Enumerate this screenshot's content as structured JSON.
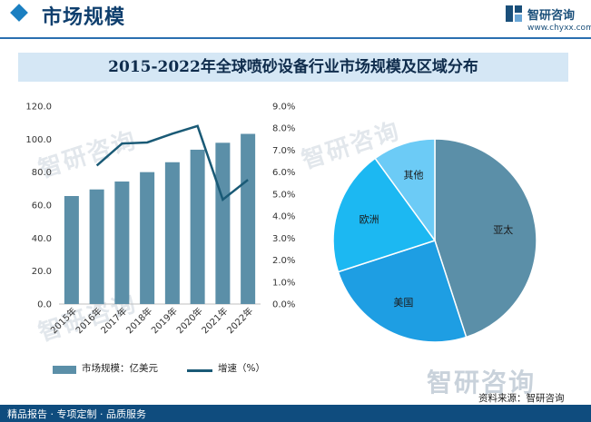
{
  "header": {
    "title": "市场规模"
  },
  "brand": {
    "name": "智研咨询",
    "url": "www.chyxx.com"
  },
  "chart_title": "2015-2022年全球喷砂设备行业市场规模及区域分布",
  "footer": {
    "tagline": "精品报告 · 专项定制 · 品质服务",
    "source": "资料来源：智研咨询"
  },
  "watermark": {
    "text": "智研咨询"
  },
  "legend": {
    "bar": "市场规模：亿美元",
    "line": "增速（%）"
  },
  "chart_data": [
    {
      "type": "bar",
      "categories": [
        "2015年",
        "2016年",
        "2017年",
        "2018年",
        "2019年",
        "2020年",
        "2021年",
        "2022年"
      ],
      "left_axis": {
        "ticks": [
          "0.0",
          "20.0",
          "40.0",
          "60.0",
          "80.0",
          "100.0",
          "120.0"
        ],
        "ylim": [
          0,
          120
        ]
      },
      "right_axis": {
        "ticks": [
          "0.0%",
          "1.0%",
          "2.0%",
          "3.0%",
          "4.0%",
          "5.0%",
          "6.0%",
          "7.0%",
          "8.0%",
          "9.0%"
        ],
        "ylim": [
          0,
          9
        ]
      },
      "series": [
        {
          "name": "市场规模：亿美元",
          "type": "bar",
          "axis": "left",
          "color": "#5b8fa8",
          "values": [
            65.5,
            69.5,
            74.3,
            80.0,
            86.0,
            93.6,
            97.8,
            103.2
          ]
        },
        {
          "name": "增速（%）",
          "type": "line",
          "axis": "right",
          "color": "#1a5a76",
          "values": [
            null,
            6.3,
            7.3,
            7.35,
            7.75,
            8.1,
            4.75,
            5.65
          ]
        }
      ]
    },
    {
      "type": "pie",
      "slices": [
        {
          "label": "亚太",
          "value": 45,
          "color": "#5b8fa8"
        },
        {
          "label": "美国",
          "value": 25,
          "color": "#1e9ee3"
        },
        {
          "label": "欧洲",
          "value": 20,
          "color": "#1cb8f2"
        },
        {
          "label": "其他",
          "value": 10,
          "color": "#6ccbf6"
        }
      ]
    }
  ]
}
